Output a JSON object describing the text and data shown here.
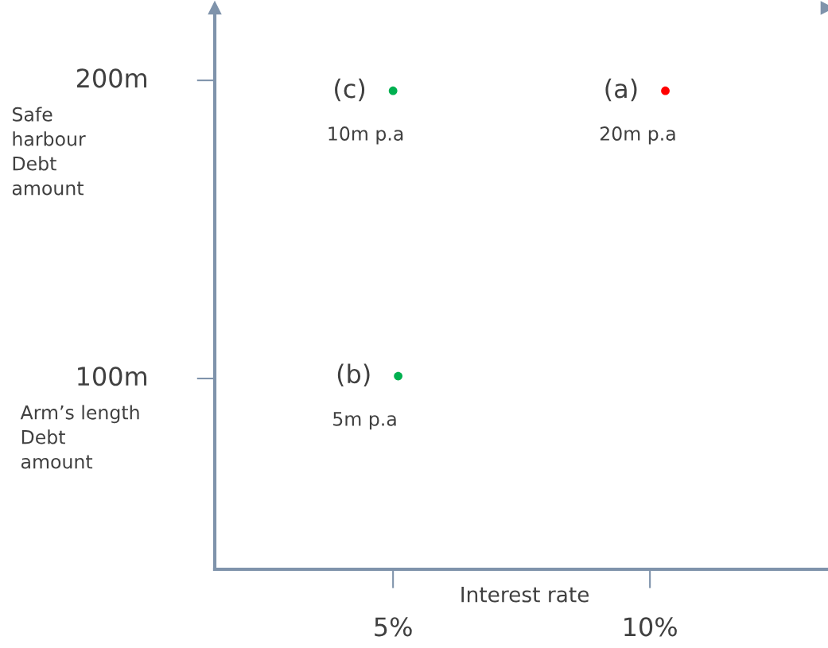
{
  "chart_data": {
    "type": "scatter",
    "xlabel": "Interest rate",
    "x": [
      10.3,
      5.1,
      5.0
    ],
    "series": [
      {
        "values": [
          196.5,
          100.8,
          196.5
        ],
        "colors": [
          "#ff0000",
          "#00b050",
          "#00b050"
        ]
      }
    ],
    "xlim": [
      1.53,
      13.45
    ],
    "ylim": [
      36,
      224.3
    ],
    "xticks": [
      {
        "value": 5,
        "label": "5%"
      },
      {
        "value": 10,
        "label": "10%"
      }
    ],
    "yticks": [
      {
        "value": 100,
        "label": "100m"
      },
      {
        "value": 200,
        "label": "200m"
      }
    ],
    "marker": "circle",
    "grid": false,
    "legend": false,
    "annotations": [
      {
        "text": "(a)",
        "x": 10.3,
        "y": 196.5
      },
      {
        "text": "20m p.a",
        "x": 10.3,
        "y": 196.5
      },
      {
        "text": "(b)",
        "x": 5.1,
        "y": 100.8
      },
      {
        "text": "5m p.a",
        "x": 5.1,
        "y": 100.8
      },
      {
        "text": "(c)",
        "x": 5.0,
        "y": 196.5
      },
      {
        "text": "10m p.a",
        "x": 5.0,
        "y": 196.5
      },
      "Safe\nharbour\nDebt\namount",
      "Arm’s length\nDebt\namount"
    ]
  }
}
